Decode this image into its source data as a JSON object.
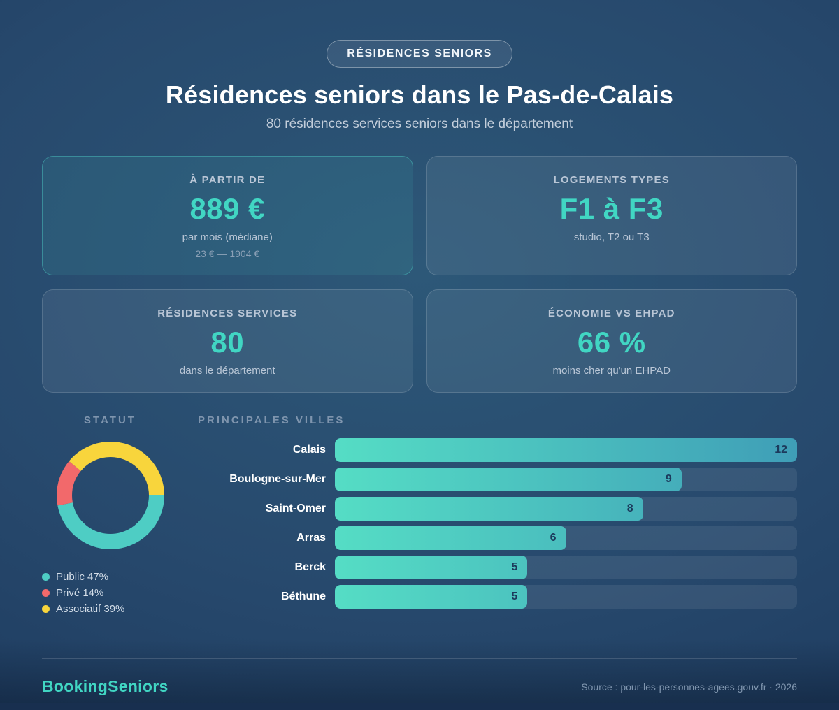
{
  "header": {
    "badge": "RÉSIDENCES SENIORS",
    "title": "Résidences seniors dans le Pas-de-Calais",
    "subtitle": "80 résidences services seniors dans le département"
  },
  "cards": [
    {
      "label": "À PARTIR DE",
      "value": "889 €",
      "sub": "par mois (médiane)",
      "range": "23 € — 1904 €"
    },
    {
      "label": "LOGEMENTS TYPES",
      "value": "F1 à F3",
      "sub": "studio, T2 ou T3"
    },
    {
      "label": "RÉSIDENCES SERVICES",
      "value": "80",
      "sub": "dans le département"
    },
    {
      "label": "ÉCONOMIE VS EHPAD",
      "value": "66 %",
      "sub": "moins cher qu'un EHPAD"
    }
  ],
  "chart_data": [
    {
      "type": "pie",
      "title": "STATUT",
      "labels": [
        "Public",
        "Privé",
        "Associatif"
      ],
      "values": [
        47,
        14,
        39
      ],
      "colors": [
        "#4ecdc4",
        "#f2696b",
        "#f8d53c"
      ],
      "legend_labels": [
        "Public 47%",
        "Privé 14%",
        "Associatif 39%"
      ],
      "donut": true,
      "start_angle_deg": 90,
      "legend_position": "bottom-left"
    },
    {
      "type": "bar",
      "title": "PRINCIPALES VILLES",
      "orientation": "horizontal",
      "categories": [
        "Calais",
        "Boulogne-sur-Mer",
        "Saint-Omer",
        "Arras",
        "Berck",
        "Béthune"
      ],
      "values": [
        12,
        9,
        8,
        6,
        5,
        5
      ],
      "xlim": [
        0,
        12
      ],
      "bar_gradient": [
        "#55ddc5",
        "#3f9eb7"
      ],
      "value_label_color": "#1c3a5c",
      "grid": false
    }
  ],
  "footer": {
    "brand": "BookingSeniors",
    "source": "Source : pour-les-personnes-agees.gouv.fr · 2026"
  },
  "colors": {
    "accent_teal": "#41d6c3",
    "background_center": "#2d5878",
    "background_edge": "#1d3a5e",
    "muted_text": "#7f95ae"
  }
}
